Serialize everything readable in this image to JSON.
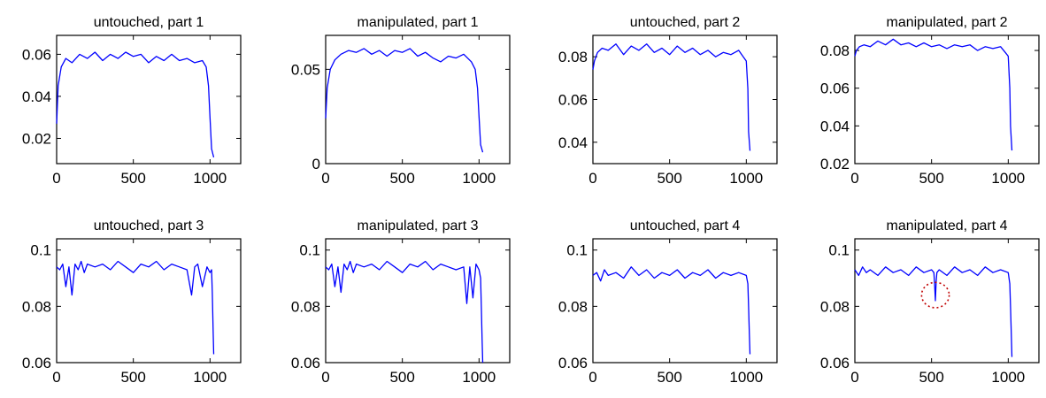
{
  "chart_data": [
    {
      "type": "line",
      "title": "untouched, part 1",
      "xlim": [
        0,
        1200
      ],
      "ylim": [
        0.008,
        0.069
      ],
      "xticks": [
        0,
        500,
        1000
      ],
      "xtick_labels": [
        "0",
        "500",
        "1000"
      ],
      "yticks": [
        0.02,
        0.04,
        0.06
      ],
      "ytick_labels": [
        "0.02",
        "0.04",
        "0.06"
      ],
      "series": [
        {
          "color": "#0000ff",
          "x": [
            0,
            10,
            30,
            60,
            100,
            150,
            200,
            250,
            300,
            350,
            400,
            450,
            500,
            550,
            600,
            650,
            700,
            750,
            800,
            850,
            900,
            950,
            975,
            990,
            1000,
            1010,
            1024
          ],
          "y": [
            0.027,
            0.045,
            0.054,
            0.058,
            0.056,
            0.06,
            0.058,
            0.061,
            0.057,
            0.06,
            0.058,
            0.061,
            0.059,
            0.06,
            0.056,
            0.059,
            0.057,
            0.06,
            0.057,
            0.058,
            0.056,
            0.057,
            0.054,
            0.045,
            0.03,
            0.015,
            0.011
          ]
        }
      ]
    },
    {
      "type": "line",
      "title": "manipulated, part 1",
      "xlim": [
        0,
        1200
      ],
      "ylim": [
        0,
        0.068
      ],
      "xticks": [
        0,
        500,
        1000
      ],
      "xtick_labels": [
        "0",
        "500",
        "1000"
      ],
      "yticks": [
        0,
        0.05
      ],
      "ytick_labels": [
        "0",
        "0.05"
      ],
      "series": [
        {
          "color": "#0000ff",
          "x": [
            0,
            10,
            30,
            60,
            100,
            150,
            200,
            250,
            300,
            350,
            400,
            450,
            500,
            550,
            600,
            650,
            700,
            750,
            800,
            850,
            900,
            950,
            975,
            990,
            1000,
            1010,
            1024
          ],
          "y": [
            0.024,
            0.04,
            0.05,
            0.055,
            0.058,
            0.06,
            0.059,
            0.061,
            0.058,
            0.06,
            0.057,
            0.06,
            0.059,
            0.061,
            0.057,
            0.059,
            0.056,
            0.054,
            0.057,
            0.056,
            0.058,
            0.054,
            0.05,
            0.04,
            0.025,
            0.01,
            0.006
          ]
        }
      ]
    },
    {
      "type": "line",
      "title": "untouched, part 2",
      "xlim": [
        0,
        1200
      ],
      "ylim": [
        0.03,
        0.09
      ],
      "xticks": [
        0,
        500,
        1000
      ],
      "xtick_labels": [
        "0",
        "500",
        "1000"
      ],
      "yticks": [
        0.04,
        0.06,
        0.08
      ],
      "ytick_labels": [
        "0.04",
        "0.06",
        "0.08"
      ],
      "series": [
        {
          "color": "#0000ff",
          "x": [
            0,
            10,
            30,
            60,
            100,
            150,
            200,
            250,
            300,
            350,
            400,
            450,
            500,
            550,
            600,
            650,
            700,
            750,
            800,
            850,
            900,
            950,
            980,
            1000,
            1010,
            1015,
            1024
          ],
          "y": [
            0.074,
            0.078,
            0.082,
            0.084,
            0.083,
            0.086,
            0.081,
            0.085,
            0.083,
            0.086,
            0.082,
            0.084,
            0.081,
            0.085,
            0.082,
            0.084,
            0.081,
            0.083,
            0.08,
            0.082,
            0.081,
            0.083,
            0.08,
            0.078,
            0.065,
            0.045,
            0.036
          ]
        }
      ]
    },
    {
      "type": "line",
      "title": "manipulated, part 2",
      "xlim": [
        0,
        1200
      ],
      "ylim": [
        0.02,
        0.088
      ],
      "xticks": [
        0,
        500,
        1000
      ],
      "xtick_labels": [
        "0",
        "500",
        "1000"
      ],
      "yticks": [
        0.02,
        0.04,
        0.06,
        0.08
      ],
      "ytick_labels": [
        "0.02",
        "0.04",
        "0.06",
        "0.08"
      ],
      "series": [
        {
          "color": "#0000ff",
          "x": [
            0,
            10,
            30,
            60,
            100,
            150,
            200,
            250,
            300,
            350,
            400,
            450,
            500,
            550,
            600,
            650,
            700,
            750,
            800,
            850,
            900,
            950,
            980,
            1000,
            1010,
            1015,
            1024
          ],
          "y": [
            0.077,
            0.08,
            0.082,
            0.083,
            0.082,
            0.085,
            0.083,
            0.086,
            0.083,
            0.084,
            0.082,
            0.084,
            0.082,
            0.083,
            0.081,
            0.083,
            0.082,
            0.083,
            0.08,
            0.082,
            0.081,
            0.082,
            0.079,
            0.077,
            0.06,
            0.04,
            0.027
          ]
        }
      ]
    },
    {
      "type": "line",
      "title": "untouched, part 3",
      "xlim": [
        0,
        1200
      ],
      "ylim": [
        0.06,
        0.104
      ],
      "xticks": [
        0,
        500,
        1000
      ],
      "xtick_labels": [
        "0",
        "500",
        "1000"
      ],
      "yticks": [
        0.06,
        0.08,
        0.1
      ],
      "ytick_labels": [
        "0.06",
        "0.08",
        "0.1"
      ],
      "series": [
        {
          "color": "#0000ff",
          "x": [
            0,
            20,
            40,
            60,
            80,
            100,
            120,
            140,
            160,
            180,
            200,
            250,
            300,
            350,
            400,
            450,
            500,
            550,
            600,
            650,
            700,
            750,
            800,
            850,
            880,
            900,
            920,
            950,
            980,
            1000,
            1010,
            1015,
            1020,
            1024
          ],
          "y": [
            0.094,
            0.093,
            0.095,
            0.087,
            0.094,
            0.084,
            0.095,
            0.093,
            0.096,
            0.092,
            0.095,
            0.094,
            0.095,
            0.093,
            0.096,
            0.094,
            0.092,
            0.095,
            0.094,
            0.096,
            0.093,
            0.095,
            0.094,
            0.093,
            0.084,
            0.094,
            0.095,
            0.087,
            0.094,
            0.092,
            0.093,
            0.085,
            0.072,
            0.063
          ]
        }
      ]
    },
    {
      "type": "line",
      "title": "manipulated, part 3",
      "xlim": [
        0,
        1200
      ],
      "ylim": [
        0.06,
        0.104
      ],
      "xticks": [
        0,
        500,
        1000
      ],
      "xtick_labels": [
        "0",
        "500",
        "1000"
      ],
      "yticks": [
        0.06,
        0.08,
        0.1
      ],
      "ytick_labels": [
        "0.06",
        "0.08",
        "0.1"
      ],
      "series": [
        {
          "color": "#0000ff",
          "x": [
            0,
            20,
            40,
            60,
            80,
            100,
            120,
            140,
            160,
            180,
            200,
            250,
            300,
            350,
            400,
            450,
            500,
            550,
            600,
            650,
            700,
            750,
            800,
            850,
            900,
            920,
            940,
            960,
            980,
            1000,
            1010,
            1015,
            1020,
            1024
          ],
          "y": [
            0.094,
            0.093,
            0.095,
            0.087,
            0.094,
            0.085,
            0.095,
            0.093,
            0.096,
            0.092,
            0.095,
            0.094,
            0.095,
            0.093,
            0.096,
            0.094,
            0.092,
            0.095,
            0.094,
            0.096,
            0.093,
            0.095,
            0.094,
            0.093,
            0.094,
            0.081,
            0.094,
            0.083,
            0.095,
            0.093,
            0.09,
            0.08,
            0.068,
            0.06
          ]
        }
      ]
    },
    {
      "type": "line",
      "title": "untouched, part 4",
      "xlim": [
        0,
        1200
      ],
      "ylim": [
        0.06,
        0.104
      ],
      "xticks": [
        0,
        500,
        1000
      ],
      "xtick_labels": [
        "0",
        "500",
        "1000"
      ],
      "yticks": [
        0.06,
        0.08,
        0.1
      ],
      "ytick_labels": [
        "0.06",
        "0.08",
        "0.1"
      ],
      "series": [
        {
          "color": "#0000ff",
          "x": [
            0,
            25,
            50,
            75,
            100,
            150,
            200,
            250,
            300,
            350,
            400,
            450,
            500,
            550,
            600,
            650,
            700,
            750,
            800,
            850,
            900,
            950,
            1000,
            1010,
            1015,
            1020,
            1024
          ],
          "y": [
            0.091,
            0.092,
            0.089,
            0.093,
            0.091,
            0.092,
            0.09,
            0.094,
            0.091,
            0.093,
            0.09,
            0.092,
            0.091,
            0.093,
            0.09,
            0.092,
            0.091,
            0.093,
            0.09,
            0.092,
            0.091,
            0.092,
            0.091,
            0.088,
            0.08,
            0.07,
            0.063
          ]
        }
      ]
    },
    {
      "type": "line",
      "title": "manipulated, part 4",
      "xlim": [
        0,
        1200
      ],
      "ylim": [
        0.06,
        0.104
      ],
      "xticks": [
        0,
        500,
        1000
      ],
      "xtick_labels": [
        "0",
        "500",
        "1000"
      ],
      "yticks": [
        0.06,
        0.08,
        0.1
      ],
      "ytick_labels": [
        "0.06",
        "0.08",
        "0.1"
      ],
      "annotation": {
        "type": "ellipse",
        "color": "#c00000",
        "style": "dotted",
        "center": [
          525,
          0.084
        ],
        "rx": 90,
        "ry": 0.0045
      },
      "series": [
        {
          "color": "#0000ff",
          "x": [
            0,
            25,
            50,
            75,
            100,
            150,
            200,
            250,
            300,
            350,
            400,
            450,
            500,
            515,
            520,
            525,
            530,
            535,
            550,
            600,
            650,
            700,
            750,
            800,
            850,
            900,
            950,
            1000,
            1010,
            1015,
            1020,
            1024
          ],
          "y": [
            0.093,
            0.091,
            0.094,
            0.092,
            0.093,
            0.091,
            0.094,
            0.092,
            0.093,
            0.091,
            0.094,
            0.092,
            0.093,
            0.092,
            0.088,
            0.082,
            0.089,
            0.092,
            0.093,
            0.091,
            0.094,
            0.092,
            0.093,
            0.091,
            0.094,
            0.092,
            0.093,
            0.092,
            0.088,
            0.08,
            0.07,
            0.062
          ]
        }
      ]
    }
  ]
}
